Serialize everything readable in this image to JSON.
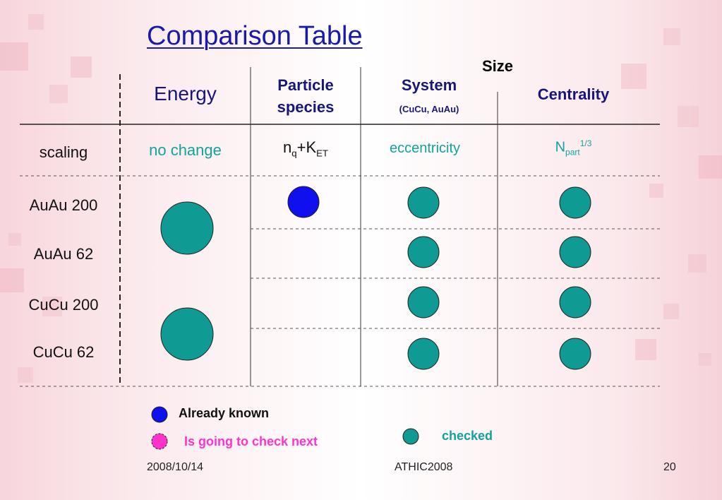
{
  "slide": {
    "title": "Comparison Table",
    "page_number": "20"
  },
  "header": {
    "size_label": "Size",
    "energy": "Energy",
    "particle_species_line1": "Particle",
    "particle_species_line2": "species",
    "system": "System",
    "system_sub": "(CuCu, AuAu)",
    "centrality": "Centrality"
  },
  "scaling_row": {
    "label": "scaling",
    "energy": "no change",
    "particle_n": "n",
    "particle_n_sub": "q",
    "particle_plus_k": "+K",
    "particle_k_sub": "ET",
    "system": "eccentricity",
    "centrality_n": "N",
    "centrality_sub": "part",
    "centrality_sup": "1/3"
  },
  "rows": [
    {
      "label": "AuAu 200"
    },
    {
      "label": "AuAu 62"
    },
    {
      "label": "CuCu 200"
    },
    {
      "label": "CuCu 62"
    }
  ],
  "legend": {
    "already_known": "Already known",
    "going_to_check": "Is going to check next",
    "checked": "checked"
  },
  "footer": {
    "date": "2008/10/14",
    "conference": "ATHIC2008"
  },
  "colors": {
    "known": "#1010ee",
    "checked": "#109a94",
    "next": "#ff33cc",
    "title": "#1a1aa8",
    "header": "#17177a",
    "teal_text": "#11a39c"
  }
}
